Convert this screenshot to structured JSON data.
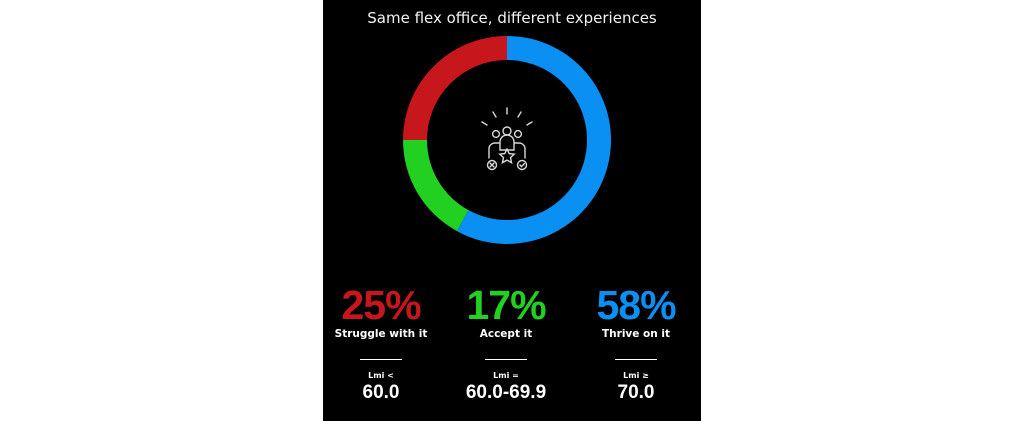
{
  "title": "Same flex office, different experiences",
  "center_icon": "group-rating-icon",
  "chart_data": {
    "type": "pie",
    "title": "Same flex office, different experiences",
    "categories": [
      "Struggle with it",
      "Accept it",
      "Thrive on it"
    ],
    "values": [
      25,
      17,
      58
    ],
    "unit": "%",
    "colors": [
      "#c8161d",
      "#22d022",
      "#0a8ff2"
    ]
  },
  "stats": [
    {
      "percent": "25%",
      "label": "Struggle with it",
      "lmi_label": "Lmi <",
      "lmi_value": "60.0",
      "color": "#c8161d"
    },
    {
      "percent": "17%",
      "label": "Accept it",
      "lmi_label": "Lmi =",
      "lmi_value": "60.0-69.9",
      "color": "#22d022"
    },
    {
      "percent": "58%",
      "label": "Thrive on it",
      "lmi_label": "Lmi ≥",
      "lmi_value": "70.0",
      "color": "#0a8ff2"
    }
  ]
}
